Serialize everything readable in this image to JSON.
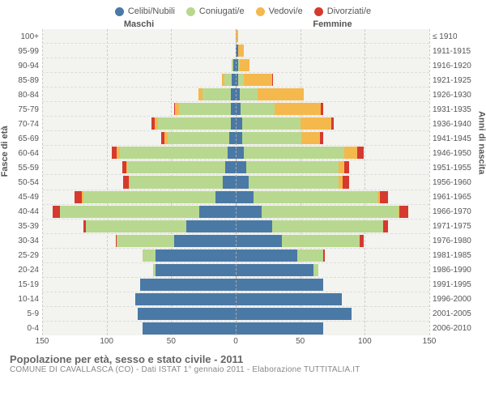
{
  "legend": [
    {
      "label": "Celibi/Nubili",
      "color": "#4a79a6"
    },
    {
      "label": "Coniugati/e",
      "color": "#b8d88f"
    },
    {
      "label": "Vedovi/e",
      "color": "#f5b84d"
    },
    {
      "label": "Divorziati/e",
      "color": "#d53a2f"
    }
  ],
  "header_male": "Maschi",
  "header_female": "Femmine",
  "y_left_title": "Fasce di età",
  "y_right_title": "Anni di nascita",
  "age_labels": [
    "100+",
    "95-99",
    "90-94",
    "85-89",
    "80-84",
    "75-79",
    "70-74",
    "65-69",
    "60-64",
    "55-59",
    "50-54",
    "45-49",
    "40-44",
    "35-39",
    "30-34",
    "25-29",
    "20-24",
    "15-19",
    "10-14",
    "5-9",
    "0-4"
  ],
  "birth_labels": [
    "≤ 1910",
    "1911-1915",
    "1916-1920",
    "1921-1925",
    "1926-1930",
    "1931-1935",
    "1936-1940",
    "1941-1945",
    "1946-1950",
    "1951-1955",
    "1956-1960",
    "1961-1965",
    "1966-1970",
    "1971-1975",
    "1976-1980",
    "1981-1985",
    "1986-1990",
    "1991-1995",
    "1996-2000",
    "2001-2005",
    "2006-2010"
  ],
  "x_max": 150,
  "x_ticks": [
    150,
    100,
    50,
    0,
    50,
    100,
    150
  ],
  "colors": {
    "celibi": "#4a79a6",
    "coniugati": "#b8d88f",
    "vedovi": "#f5b84d",
    "divorziati": "#d53a2f",
    "plot_bg": "#f3f3f0",
    "grid": "#cccccc",
    "text": "#555555"
  },
  "rows": [
    {
      "m": {
        "c": 0,
        "k": 0,
        "v": 0,
        "d": 0
      },
      "f": {
        "c": 0,
        "k": 0,
        "v": 2,
        "d": 0
      }
    },
    {
      "m": {
        "c": 0,
        "k": 0,
        "v": 0,
        "d": 0
      },
      "f": {
        "c": 2,
        "k": 0,
        "v": 4,
        "d": 0
      }
    },
    {
      "m": {
        "c": 2,
        "k": 1,
        "v": 0,
        "d": 0
      },
      "f": {
        "c": 2,
        "k": 1,
        "v": 8,
        "d": 0
      }
    },
    {
      "m": {
        "c": 3,
        "k": 6,
        "v": 2,
        "d": 0
      },
      "f": {
        "c": 2,
        "k": 4,
        "v": 22,
        "d": 1
      }
    },
    {
      "m": {
        "c": 4,
        "k": 22,
        "v": 3,
        "d": 0
      },
      "f": {
        "c": 3,
        "k": 14,
        "v": 36,
        "d": 0
      }
    },
    {
      "m": {
        "c": 4,
        "k": 40,
        "v": 3,
        "d": 1
      },
      "f": {
        "c": 4,
        "k": 26,
        "v": 36,
        "d": 2
      }
    },
    {
      "m": {
        "c": 4,
        "k": 56,
        "v": 3,
        "d": 2
      },
      "f": {
        "c": 5,
        "k": 45,
        "v": 24,
        "d": 2
      }
    },
    {
      "m": {
        "c": 5,
        "k": 48,
        "v": 2,
        "d": 3
      },
      "f": {
        "c": 5,
        "k": 46,
        "v": 14,
        "d": 3
      }
    },
    {
      "m": {
        "c": 6,
        "k": 84,
        "v": 2,
        "d": 4
      },
      "f": {
        "c": 6,
        "k": 78,
        "v": 10,
        "d": 5
      }
    },
    {
      "m": {
        "c": 8,
        "k": 76,
        "v": 1,
        "d": 3
      },
      "f": {
        "c": 8,
        "k": 72,
        "v": 4,
        "d": 4
      }
    },
    {
      "m": {
        "c": 10,
        "k": 72,
        "v": 1,
        "d": 4
      },
      "f": {
        "c": 10,
        "k": 70,
        "v": 3,
        "d": 5
      }
    },
    {
      "m": {
        "c": 16,
        "k": 102,
        "v": 1,
        "d": 6
      },
      "f": {
        "c": 14,
        "k": 96,
        "v": 2,
        "d": 6
      }
    },
    {
      "m": {
        "c": 28,
        "k": 108,
        "v": 0,
        "d": 6
      },
      "f": {
        "c": 20,
        "k": 106,
        "v": 1,
        "d": 7
      }
    },
    {
      "m": {
        "c": 38,
        "k": 78,
        "v": 0,
        "d": 2
      },
      "f": {
        "c": 28,
        "k": 86,
        "v": 0,
        "d": 4
      }
    },
    {
      "m": {
        "c": 48,
        "k": 44,
        "v": 0,
        "d": 1
      },
      "f": {
        "c": 36,
        "k": 60,
        "v": 0,
        "d": 3
      }
    },
    {
      "m": {
        "c": 62,
        "k": 10,
        "v": 0,
        "d": 0
      },
      "f": {
        "c": 48,
        "k": 20,
        "v": 0,
        "d": 1
      }
    },
    {
      "m": {
        "c": 62,
        "k": 2,
        "v": 0,
        "d": 0
      },
      "f": {
        "c": 60,
        "k": 4,
        "v": 0,
        "d": 0
      }
    },
    {
      "m": {
        "c": 74,
        "k": 0,
        "v": 0,
        "d": 0
      },
      "f": {
        "c": 68,
        "k": 0,
        "v": 0,
        "d": 0
      }
    },
    {
      "m": {
        "c": 78,
        "k": 0,
        "v": 0,
        "d": 0
      },
      "f": {
        "c": 82,
        "k": 0,
        "v": 0,
        "d": 0
      }
    },
    {
      "m": {
        "c": 76,
        "k": 0,
        "v": 0,
        "d": 0
      },
      "f": {
        "c": 90,
        "k": 0,
        "v": 0,
        "d": 0
      }
    },
    {
      "m": {
        "c": 72,
        "k": 0,
        "v": 0,
        "d": 0
      },
      "f": {
        "c": 68,
        "k": 0,
        "v": 0,
        "d": 0
      }
    }
  ],
  "footer_title": "Popolazione per età, sesso e stato civile - 2011",
  "footer_sub": "COMUNE DI CAVALLASCA (CO) - Dati ISTAT 1° gennaio 2011 - Elaborazione TUTTITALIA.IT"
}
